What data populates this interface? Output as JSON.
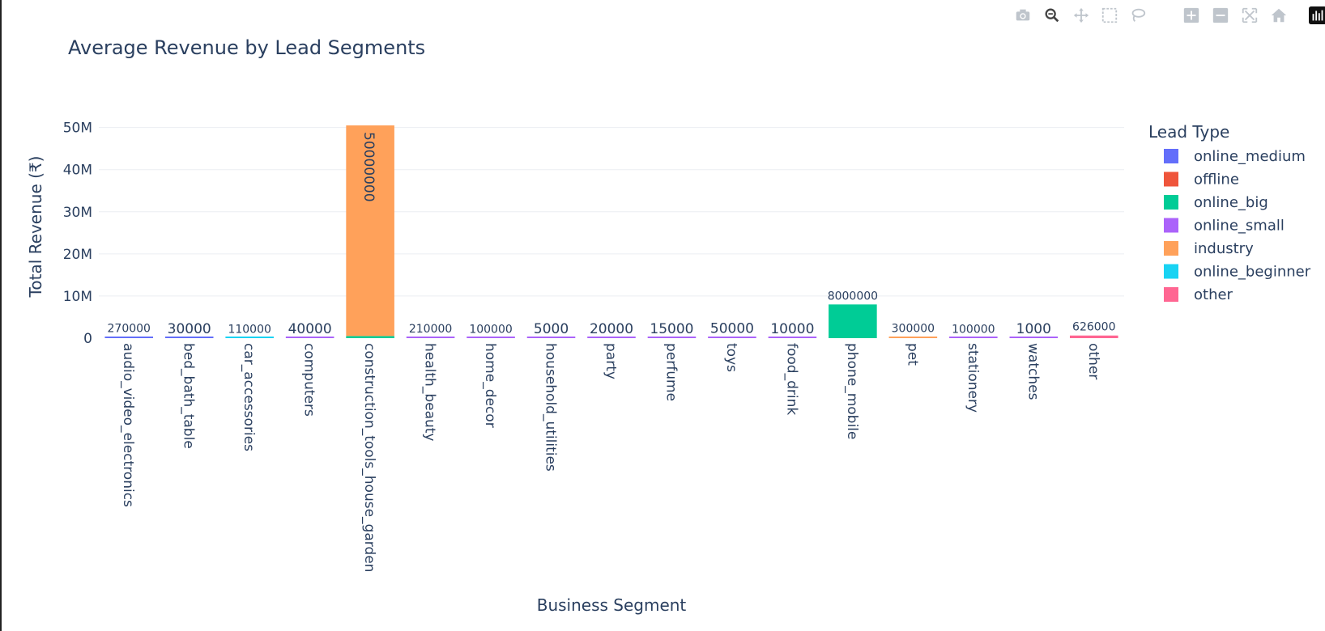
{
  "toolbar": {
    "buttons": [
      {
        "name": "camera-icon"
      },
      {
        "name": "zoom-icon"
      },
      {
        "name": "pan-icon"
      },
      {
        "name": "box-select-icon"
      },
      {
        "name": "lasso-select-icon"
      },
      {
        "name": "zoom-in-icon"
      },
      {
        "name": "zoom-out-icon"
      },
      {
        "name": "autoscale-icon"
      },
      {
        "name": "home-icon"
      },
      {
        "name": "plotly-logo-icon"
      }
    ]
  },
  "chart_data": {
    "type": "bar",
    "barmode": "stack",
    "title": "Average Revenue by Lead Segments",
    "xlabel": "Business Segment",
    "ylabel": "Total Revenue (₹)",
    "ylim": [
      0,
      53000000
    ],
    "yticks": [
      0,
      10000000,
      20000000,
      30000000,
      40000000,
      50000000
    ],
    "ytick_labels": [
      "0",
      "10M",
      "20M",
      "30M",
      "40M",
      "50M"
    ],
    "grid": true,
    "legend": {
      "title": "Lead Type",
      "position": "right"
    },
    "categories": [
      "audio_video_electronics",
      "bed_bath_table",
      "car_accessories",
      "computers",
      "construction_tools_house_garden",
      "health_beauty",
      "home_decor",
      "household_utilities",
      "party",
      "perfume",
      "toys",
      "food_drink",
      "phone_mobile",
      "pet",
      "stationery",
      "watches",
      "other"
    ],
    "series": [
      {
        "name": "online_medium",
        "color": "#636efa",
        "values": [
          270000,
          30000,
          0,
          0,
          0,
          0,
          0,
          0,
          0,
          0,
          0,
          0,
          0,
          0,
          0,
          0,
          0
        ]
      },
      {
        "name": "offline",
        "color": "#ef553b",
        "values": [
          0,
          0,
          0,
          0,
          0,
          0,
          0,
          0,
          0,
          0,
          0,
          0,
          0,
          0,
          0,
          0,
          0
        ]
      },
      {
        "name": "online_big",
        "color": "#00cc96",
        "values": [
          0,
          0,
          0,
          0,
          500000,
          0,
          0,
          0,
          0,
          0,
          0,
          0,
          8000000,
          0,
          0,
          0,
          0
        ]
      },
      {
        "name": "online_small",
        "color": "#ab63fa",
        "values": [
          0,
          0,
          0,
          40000,
          0,
          210000,
          100000,
          5000,
          20000,
          15000,
          50000,
          10000,
          0,
          0,
          100000,
          1000,
          0
        ]
      },
      {
        "name": "industry",
        "color": "#ffa15a",
        "values": [
          0,
          0,
          0,
          0,
          50000000,
          0,
          0,
          0,
          0,
          0,
          0,
          0,
          0,
          300000,
          0,
          0,
          0
        ]
      },
      {
        "name": "online_beginner",
        "color": "#19d3f3",
        "values": [
          0,
          0,
          110000,
          0,
          0,
          0,
          0,
          0,
          0,
          0,
          0,
          0,
          0,
          0,
          0,
          0,
          0
        ]
      },
      {
        "name": "other",
        "color": "#ff6692",
        "values": [
          0,
          0,
          0,
          0,
          0,
          0,
          0,
          0,
          0,
          0,
          0,
          0,
          0,
          0,
          0,
          0,
          626000
        ]
      }
    ],
    "bar_labels": [
      "270000",
      "30000",
      "110000",
      "40000",
      "50000000",
      "210000",
      "100000",
      "5000",
      "20000",
      "15000",
      "50000",
      "10000",
      "8000000",
      "300000",
      "100000",
      "1000",
      "626000"
    ]
  }
}
